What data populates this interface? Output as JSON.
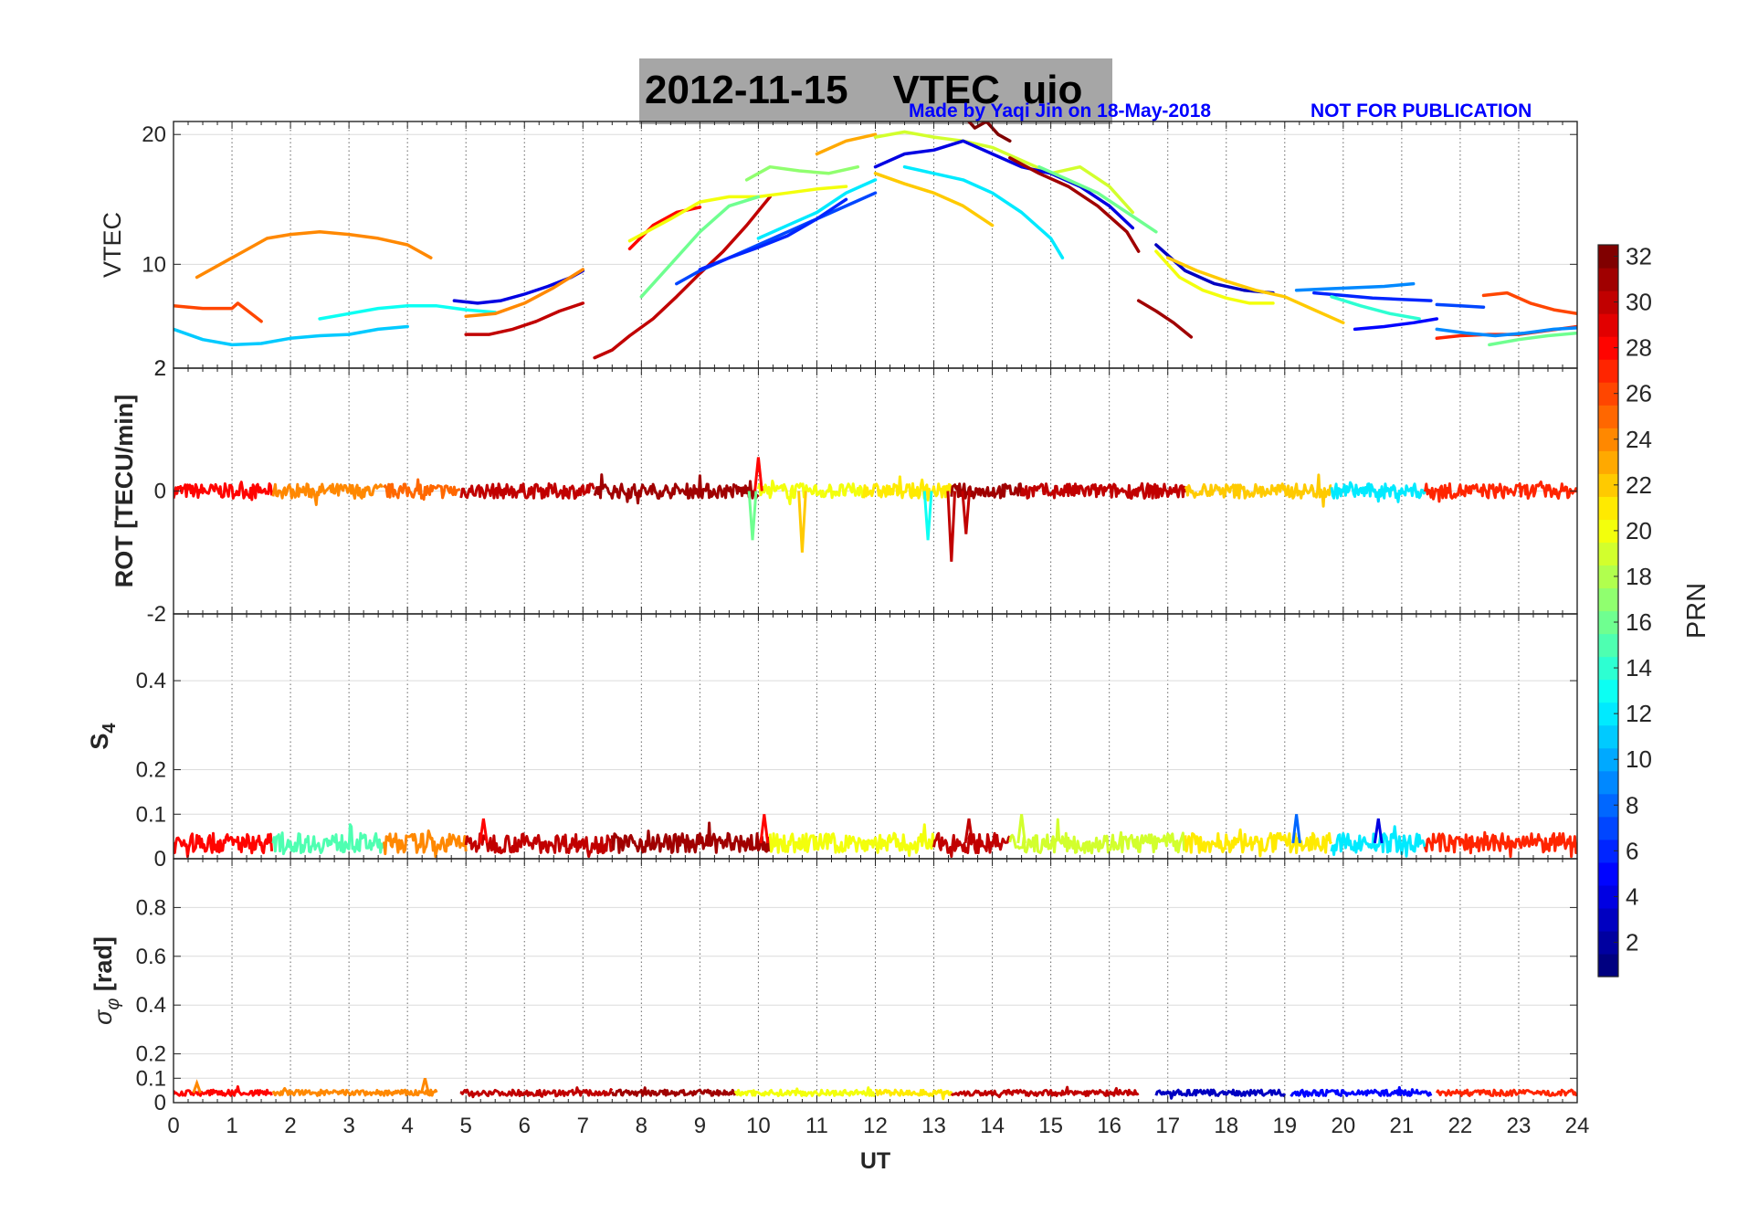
{
  "header": {
    "title": "2012-11-15    VTEC  uio",
    "credit": "Made by Yaqi Jin on 18-May-2018",
    "notice": "NOT FOR PUBLICATION",
    "title_bg": "#a6a6a6",
    "credit_color": "#0000ff"
  },
  "chart_data": [
    {
      "type": "line",
      "id": "vtec",
      "ylabel": "VTEC",
      "ylim": [
        2,
        21
      ],
      "yticks": [
        2,
        10,
        20
      ],
      "xlim": [
        0,
        24
      ],
      "series": [
        {
          "prn": 26,
          "x": [
            0.0,
            0.5,
            1.0,
            1.1,
            1.5
          ],
          "y": [
            6.8,
            6.6,
            6.6,
            7.0,
            5.6
          ]
        },
        {
          "prn": 24,
          "x": [
            0.4,
            0.8,
            1.2,
            1.6,
            2.0,
            2.5,
            3.0,
            3.5,
            4.0,
            4.4
          ],
          "y": [
            9.0,
            10.0,
            11.0,
            12.0,
            12.3,
            12.5,
            12.3,
            12.0,
            11.5,
            10.5
          ]
        },
        {
          "prn": 11,
          "x": [
            0.0,
            0.5,
            1.0,
            1.5,
            2.0,
            2.5,
            3.0,
            3.5,
            4.0
          ],
          "y": [
            5.0,
            4.2,
            3.8,
            3.9,
            4.3,
            4.5,
            4.6,
            5.0,
            5.2
          ]
        },
        {
          "prn": 13,
          "x": [
            2.5,
            3.0,
            3.5,
            4.0,
            4.5,
            5.0,
            5.5
          ],
          "y": [
            5.8,
            6.2,
            6.6,
            6.8,
            6.8,
            6.5,
            6.3
          ]
        },
        {
          "prn": 4,
          "x": [
            4.8,
            5.2,
            5.6,
            6.0,
            6.4,
            6.8,
            7.0
          ],
          "y": [
            7.2,
            7.0,
            7.2,
            7.7,
            8.3,
            9.0,
            9.5
          ]
        },
        {
          "prn": 30,
          "x": [
            5.0,
            5.4,
            5.8,
            6.2,
            6.6,
            7.0
          ],
          "y": [
            4.6,
            4.6,
            5.0,
            5.6,
            6.4,
            7.0
          ]
        },
        {
          "prn": 24,
          "x": [
            5.0,
            5.5,
            6.0,
            6.5,
            7.0
          ],
          "y": [
            6.0,
            6.2,
            7.0,
            8.2,
            9.6
          ]
        },
        {
          "prn": 30,
          "x": [
            7.2,
            7.5,
            7.8,
            8.2,
            8.6,
            9.0,
            9.4,
            9.8,
            10.2
          ],
          "y": [
            2.8,
            3.4,
            4.5,
            5.8,
            7.5,
            9.3,
            11.0,
            13.0,
            15.2
          ]
        },
        {
          "prn": 28,
          "x": [
            7.8,
            8.2,
            8.6,
            9.0
          ],
          "y": [
            11.2,
            13.0,
            14.0,
            14.4
          ]
        },
        {
          "prn": 20,
          "x": [
            7.8,
            8.5,
            9.0,
            9.5,
            10.0,
            10.5,
            11.0,
            11.5
          ],
          "y": [
            11.8,
            13.5,
            14.8,
            15.2,
            15.2,
            15.5,
            15.8,
            16.0
          ]
        },
        {
          "prn": 16,
          "x": [
            8.0,
            8.5,
            9.0,
            9.5,
            10.0
          ],
          "y": [
            7.5,
            10.0,
            12.5,
            14.5,
            15.2
          ]
        },
        {
          "prn": 7,
          "x": [
            8.6,
            9.0,
            9.5,
            10.0,
            10.5,
            11.0,
            11.5,
            12.0
          ],
          "y": [
            8.5,
            9.5,
            10.5,
            11.5,
            12.5,
            13.5,
            14.5,
            15.5
          ]
        },
        {
          "prn": 6,
          "x": [
            9.0,
            9.5,
            10.0,
            10.5,
            11.0,
            11.5
          ],
          "y": [
            9.6,
            10.5,
            11.3,
            12.2,
            13.5,
            15.0
          ]
        },
        {
          "prn": 12,
          "x": [
            10.0,
            10.5,
            11.0,
            11.5,
            12.0
          ],
          "y": [
            12.0,
            13.0,
            14.0,
            15.5,
            16.5
          ]
        },
        {
          "prn": 17,
          "x": [
            9.8,
            10.2,
            10.7,
            11.2,
            11.7
          ],
          "y": [
            16.5,
            17.5,
            17.2,
            17.0,
            17.5
          ]
        },
        {
          "prn": 23,
          "x": [
            11.0,
            11.5,
            12.0
          ],
          "y": [
            18.5,
            19.5,
            20.0
          ]
        },
        {
          "prn": 19,
          "x": [
            12.0,
            12.5,
            13.0,
            13.5,
            14.0,
            14.5,
            15.0,
            15.5,
            16.0,
            16.4
          ],
          "y": [
            19.8,
            20.2,
            19.8,
            19.5,
            19.0,
            18.0,
            17.0,
            17.5,
            16.0,
            14.0
          ]
        },
        {
          "prn": 22,
          "x": [
            12.0,
            12.5,
            13.0,
            13.5,
            14.0
          ],
          "y": [
            17.0,
            16.2,
            15.5,
            14.5,
            13.0
          ]
        },
        {
          "prn": 4,
          "x": [
            12.0,
            12.5,
            13.0,
            13.5,
            14.0,
            14.5,
            15.0,
            15.5,
            16.0,
            16.4
          ],
          "y": [
            17.5,
            18.5,
            18.8,
            19.5,
            18.5,
            17.5,
            17.0,
            16.0,
            14.5,
            12.8
          ]
        },
        {
          "prn": 12,
          "x": [
            12.5,
            13.0,
            13.5,
            14.0,
            14.5,
            15.0,
            15.2
          ],
          "y": [
            17.5,
            17.0,
            16.5,
            15.5,
            14.0,
            12.0,
            10.5
          ]
        },
        {
          "prn": 32,
          "x": [
            13.5,
            13.7,
            13.9,
            14.1,
            14.3
          ],
          "y": [
            21.5,
            20.5,
            21.0,
            20.0,
            19.5
          ]
        },
        {
          "prn": 31,
          "x": [
            14.3,
            14.8,
            15.3,
            15.8,
            16.3,
            16.5
          ],
          "y": [
            18.2,
            17.0,
            16.0,
            14.5,
            12.5,
            11.0
          ]
        },
        {
          "prn": 16,
          "x": [
            14.8,
            15.3,
            15.8,
            16.3,
            16.8
          ],
          "y": [
            17.5,
            16.5,
            15.5,
            14.0,
            12.5
          ]
        },
        {
          "prn": 31,
          "x": [
            16.5,
            16.8,
            17.1,
            17.4
          ],
          "y": [
            7.2,
            6.4,
            5.5,
            4.4
          ]
        },
        {
          "prn": 20,
          "x": [
            16.8,
            17.2,
            17.6,
            18.0,
            18.4,
            18.8
          ],
          "y": [
            11.0,
            9.0,
            8.0,
            7.4,
            7.0,
            7.0
          ]
        },
        {
          "prn": 3,
          "x": [
            16.8,
            17.3,
            17.8,
            18.3,
            18.8
          ],
          "y": [
            11.5,
            9.5,
            8.5,
            8.0,
            7.8
          ]
        },
        {
          "prn": 22,
          "x": [
            17.0,
            17.5,
            18.0,
            18.5,
            19.0,
            19.5,
            20.0
          ],
          "y": [
            10.5,
            9.5,
            8.7,
            8.0,
            7.5,
            6.5,
            5.5
          ]
        },
        {
          "prn": 9,
          "x": [
            19.2,
            19.7,
            20.2,
            20.7,
            21.2
          ],
          "y": [
            8.0,
            8.1,
            8.2,
            8.3,
            8.5
          ]
        },
        {
          "prn": 6,
          "x": [
            19.5,
            20.0,
            20.5,
            21.0,
            21.5
          ],
          "y": [
            7.8,
            7.6,
            7.4,
            7.3,
            7.2
          ]
        },
        {
          "prn": 14,
          "x": [
            19.8,
            20.3,
            20.8,
            21.3
          ],
          "y": [
            7.5,
            6.8,
            6.2,
            5.8
          ]
        },
        {
          "prn": 5,
          "x": [
            20.2,
            20.7,
            21.2,
            21.6
          ],
          "y": [
            5.0,
            5.2,
            5.5,
            5.8
          ]
        },
        {
          "prn": 7,
          "x": [
            21.6,
            22.0,
            22.4
          ],
          "y": [
            6.9,
            6.8,
            6.7
          ]
        },
        {
          "prn": 26,
          "x": [
            22.4,
            22.8,
            23.2,
            23.6,
            24.0
          ],
          "y": [
            7.6,
            7.8,
            7.0,
            6.5,
            6.2
          ]
        },
        {
          "prn": 27,
          "x": [
            21.6,
            22.0,
            22.5,
            23.0,
            23.5,
            24.0
          ],
          "y": [
            4.3,
            4.5,
            4.6,
            4.6,
            4.9,
            5.2
          ]
        },
        {
          "prn": 9,
          "x": [
            21.6,
            22.1,
            22.6,
            23.1,
            23.6,
            24.0
          ],
          "y": [
            5.0,
            4.7,
            4.5,
            4.7,
            5.0,
            5.1
          ]
        },
        {
          "prn": 16,
          "x": [
            22.5,
            23.0,
            23.5,
            24.0
          ],
          "y": [
            3.8,
            4.2,
            4.5,
            4.7
          ]
        }
      ]
    },
    {
      "type": "line",
      "id": "rot",
      "ylabel": "ROT [TECU/min]",
      "ylim": [
        -2,
        2
      ],
      "yticks": [
        -2,
        0,
        2
      ],
      "xlim": [
        0,
        24
      ],
      "baseline": 0,
      "noise": 0.12,
      "segments": [
        {
          "prn": 28,
          "x0": 0.0,
          "x1": 1.7
        },
        {
          "prn": 24,
          "x0": 1.7,
          "x1": 3.6
        },
        {
          "prn": 25,
          "x0": 3.6,
          "x1": 4.9
        },
        {
          "prn": 30,
          "x0": 4.9,
          "x1": 7.2
        },
        {
          "prn": 31,
          "x0": 7.2,
          "x1": 10.0
        },
        {
          "prn": 20,
          "x0": 10.0,
          "x1": 11.8
        },
        {
          "prn": 21,
          "x0": 11.8,
          "x1": 13.3
        },
        {
          "prn": 31,
          "x0": 13.3,
          "x1": 14.5
        },
        {
          "prn": 30,
          "x0": 14.5,
          "x1": 17.3
        },
        {
          "prn": 22,
          "x0": 17.3,
          "x1": 19.8
        },
        {
          "prn": 12,
          "x0": 19.8,
          "x1": 21.4
        },
        {
          "prn": 27,
          "x0": 21.4,
          "x1": 24.0
        }
      ],
      "spikes": [
        {
          "prn": 16,
          "x": 9.9,
          "y": -0.8
        },
        {
          "prn": 22,
          "x": 10.75,
          "y": -1.0
        },
        {
          "prn": 30,
          "x": 13.3,
          "y": -1.15
        },
        {
          "prn": 30,
          "x": 13.55,
          "y": -0.7
        },
        {
          "prn": 13,
          "x": 12.9,
          "y": -0.8
        },
        {
          "prn": 28,
          "x": 10.0,
          "y": 0.55
        }
      ]
    },
    {
      "type": "line",
      "id": "s4",
      "ylabel": "S4",
      "ylim": [
        0,
        0.55
      ],
      "yticks": [
        0,
        0.1,
        0.2,
        0.4
      ],
      "xlim": [
        0,
        24
      ],
      "baseline": 0.035,
      "noise": 0.022,
      "segments": [
        {
          "prn": 28,
          "x0": 0.0,
          "x1": 1.7
        },
        {
          "prn": 15,
          "x0": 1.7,
          "x1": 3.6
        },
        {
          "prn": 24,
          "x0": 3.6,
          "x1": 5.0
        },
        {
          "prn": 30,
          "x0": 5.0,
          "x1": 7.5
        },
        {
          "prn": 31,
          "x0": 7.5,
          "x1": 10.2
        },
        {
          "prn": 20,
          "x0": 10.2,
          "x1": 13.0
        },
        {
          "prn": 30,
          "x0": 13.0,
          "x1": 14.3
        },
        {
          "prn": 19,
          "x0": 14.3,
          "x1": 17.3
        },
        {
          "prn": 21,
          "x0": 17.3,
          "x1": 19.8
        },
        {
          "prn": 12,
          "x0": 19.8,
          "x1": 21.4
        },
        {
          "prn": 27,
          "x0": 21.4,
          "x1": 24.0
        }
      ],
      "spikes": [
        {
          "prn": 28,
          "x": 5.3,
          "y": 0.09
        },
        {
          "prn": 28,
          "x": 10.1,
          "y": 0.1
        },
        {
          "prn": 8,
          "x": 19.2,
          "y": 0.1
        },
        {
          "prn": 4,
          "x": 20.6,
          "y": 0.09
        },
        {
          "prn": 30,
          "x": 13.6,
          "y": 0.09
        },
        {
          "prn": 19,
          "x": 14.5,
          "y": 0.1
        }
      ]
    },
    {
      "type": "line",
      "id": "sigma",
      "ylabel": "σ_φ [rad]",
      "ylim": [
        0,
        1
      ],
      "yticks": [
        0,
        0.1,
        0.2,
        0.4,
        0.6,
        0.8
      ],
      "xlim": [
        0,
        24
      ],
      "xticks": [
        0,
        1,
        2,
        3,
        4,
        5,
        6,
        7,
        8,
        9,
        10,
        11,
        12,
        13,
        14,
        15,
        16,
        17,
        18,
        19,
        20,
        21,
        22,
        23,
        24
      ],
      "xlabel": "UT",
      "baseline": 0.04,
      "noise": 0.012,
      "segments": [
        {
          "prn": 28,
          "x0": 0.0,
          "x1": 1.7
        },
        {
          "prn": 24,
          "x0": 1.7,
          "x1": 4.5
        },
        {
          "prn": 30,
          "x0": 4.9,
          "x1": 7.5
        },
        {
          "prn": 31,
          "x0": 7.5,
          "x1": 9.6
        },
        {
          "prn": 20,
          "x0": 9.6,
          "x1": 12.0
        },
        {
          "prn": 21,
          "x0": 12.0,
          "x1": 13.3
        },
        {
          "prn": 30,
          "x0": 13.3,
          "x1": 16.5
        },
        {
          "prn": 3,
          "x0": 16.8,
          "x1": 19.0
        },
        {
          "prn": 5,
          "x0": 19.1,
          "x1": 21.5
        },
        {
          "prn": 27,
          "x0": 21.6,
          "x1": 24.0
        }
      ],
      "spikes": [
        {
          "prn": 24,
          "x": 4.3,
          "y": 0.1
        },
        {
          "prn": 24,
          "x": 0.4,
          "y": 0.08
        }
      ]
    }
  ],
  "colorbar": {
    "label": "PRN",
    "min": 1,
    "max": 32,
    "ticks": [
      2,
      4,
      6,
      8,
      10,
      12,
      14,
      16,
      18,
      20,
      22,
      24,
      26,
      28,
      30,
      32
    ],
    "colormap": "jet"
  }
}
